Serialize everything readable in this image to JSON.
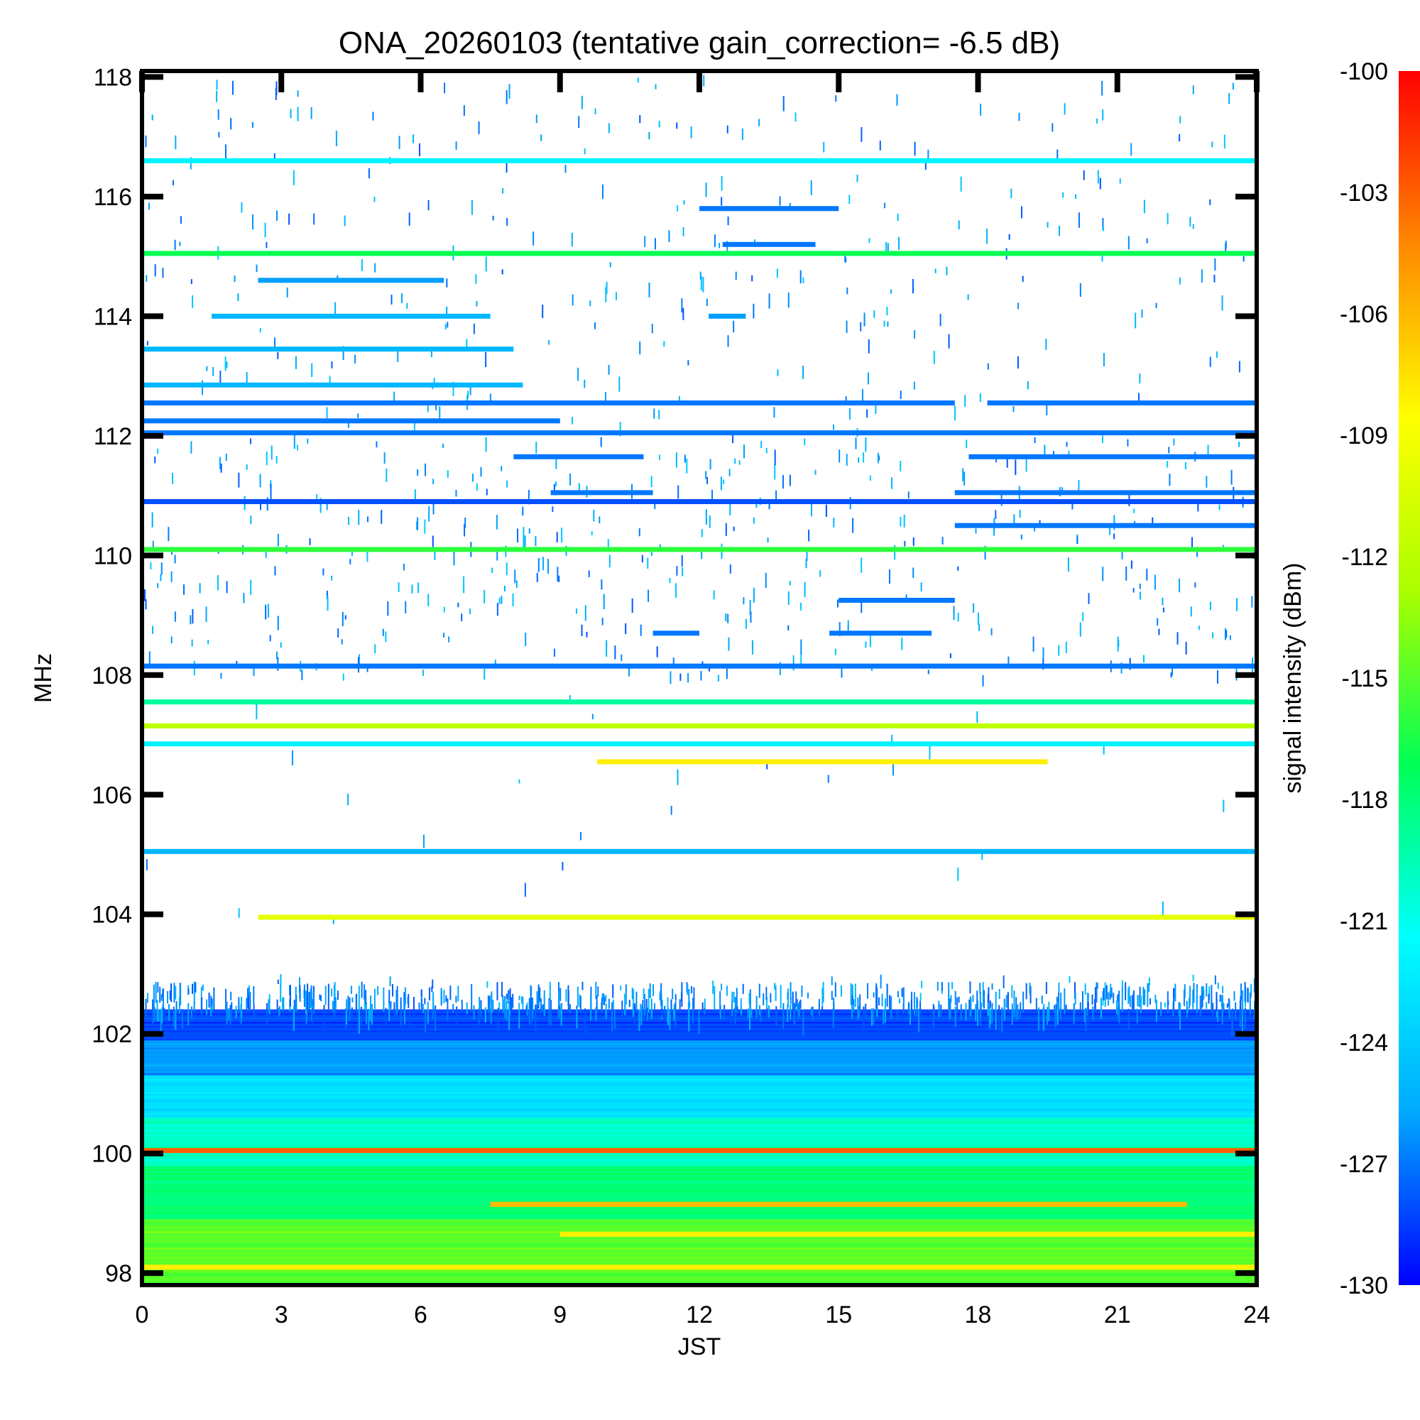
{
  "chart_data": {
    "type": "heatmap",
    "title": "ONA_20260103 (tentative gain_correction= -6.5 dB)",
    "xlabel": "JST",
    "ylabel": "MHz",
    "xlim": [
      0,
      24
    ],
    "ylim": [
      97.8,
      118.1
    ],
    "x_ticks": [
      0,
      3,
      6,
      9,
      12,
      15,
      18,
      21,
      24
    ],
    "y_ticks": [
      98,
      100,
      102,
      104,
      106,
      108,
      110,
      112,
      114,
      116,
      118
    ],
    "grid": false,
    "colorbar": {
      "label": "signal intensity (dBm)",
      "min": -130,
      "max": -100,
      "ticks": [
        -100,
        -103,
        -106,
        -109,
        -112,
        -115,
        -118,
        -121,
        -124,
        -127,
        -130
      ],
      "colormap": "jet",
      "colors": [
        "#0000ff",
        "#00aaff",
        "#00ffff",
        "#00ff55",
        "#aaff00",
        "#ffff00",
        "#ff8800",
        "#ff0000"
      ]
    },
    "bands": [
      {
        "freq": 116.6,
        "t_start": 0,
        "t_end": 24,
        "dbm": -122
      },
      {
        "freq": 115.2,
        "t_start": 12.5,
        "t_end": 14.5,
        "dbm": -127
      },
      {
        "freq": 115.8,
        "t_start": 12,
        "t_end": 15,
        "dbm": -127
      },
      {
        "freq": 115.05,
        "t_start": 0,
        "t_end": 24,
        "dbm": -117
      },
      {
        "freq": 114.6,
        "t_start": 2.5,
        "t_end": 6.5,
        "dbm": -126
      },
      {
        "freq": 114.0,
        "t_start": 1.5,
        "t_end": 7.5,
        "dbm": -125
      },
      {
        "freq": 114.0,
        "t_start": 12.2,
        "t_end": 13,
        "dbm": -126
      },
      {
        "freq": 113.45,
        "t_start": 0,
        "t_end": 8,
        "dbm": -125
      },
      {
        "freq": 112.85,
        "t_start": 0,
        "t_end": 8.2,
        "dbm": -125
      },
      {
        "freq": 112.55,
        "t_start": 0,
        "t_end": 17.5,
        "dbm": -127
      },
      {
        "freq": 112.55,
        "t_start": 18.2,
        "t_end": 24,
        "dbm": -127
      },
      {
        "freq": 112.25,
        "t_start": 0,
        "t_end": 9,
        "dbm": -127
      },
      {
        "freq": 112.05,
        "t_start": 0,
        "t_end": 24,
        "dbm": -127
      },
      {
        "freq": 111.65,
        "t_start": 8,
        "t_end": 10.8,
        "dbm": -127
      },
      {
        "freq": 111.65,
        "t_start": 17.8,
        "t_end": 24,
        "dbm": -127
      },
      {
        "freq": 111.05,
        "t_start": 8.8,
        "t_end": 11,
        "dbm": -127
      },
      {
        "freq": 111.05,
        "t_start": 17.5,
        "t_end": 24,
        "dbm": -127
      },
      {
        "freq": 110.9,
        "t_start": 0,
        "t_end": 24,
        "dbm": -128
      },
      {
        "freq": 110.5,
        "t_start": 17.5,
        "t_end": 24,
        "dbm": -127
      },
      {
        "freq": 110.1,
        "t_start": 0,
        "t_end": 24,
        "dbm": -116
      },
      {
        "freq": 109.25,
        "t_start": 15,
        "t_end": 17.5,
        "dbm": -127
      },
      {
        "freq": 108.7,
        "t_start": 11,
        "t_end": 12,
        "dbm": -127
      },
      {
        "freq": 108.7,
        "t_start": 14.8,
        "t_end": 17,
        "dbm": -127
      },
      {
        "freq": 108.15,
        "t_start": 0,
        "t_end": 24,
        "dbm": -127
      },
      {
        "freq": 107.55,
        "t_start": 0,
        "t_end": 24,
        "dbm": -119
      },
      {
        "freq": 107.15,
        "t_start": 0,
        "t_end": 24,
        "dbm": -112
      },
      {
        "freq": 106.85,
        "t_start": 0,
        "t_end": 24,
        "dbm": -122
      },
      {
        "freq": 106.55,
        "t_start": 9.8,
        "t_end": 19.5,
        "dbm": -108
      },
      {
        "freq": 105.05,
        "t_start": 0,
        "t_end": 24,
        "dbm": -125
      },
      {
        "freq": 103.95,
        "t_start": 2.5,
        "t_end": 24,
        "dbm": -110
      },
      {
        "freq": 100.05,
        "t_start": 0,
        "t_end": 24,
        "dbm": -103
      },
      {
        "freq": 99.15,
        "t_start": 7.5,
        "t_end": 22.5,
        "dbm": -106
      },
      {
        "freq": 98.65,
        "t_start": 9,
        "t_end": 24,
        "dbm": -108
      },
      {
        "freq": 98.1,
        "t_start": 0,
        "t_end": 24,
        "dbm": -108
      }
    ],
    "continuum": [
      {
        "f_start": 97.8,
        "f_end": 98.9,
        "dbm": -115
      },
      {
        "f_start": 98.9,
        "f_end": 99.8,
        "dbm": -118
      },
      {
        "f_start": 99.8,
        "f_end": 100.6,
        "dbm": -120
      },
      {
        "f_start": 100.6,
        "f_end": 101.3,
        "dbm": -123
      },
      {
        "f_start": 101.3,
        "f_end": 101.9,
        "dbm": -126
      },
      {
        "f_start": 101.9,
        "f_end": 102.4,
        "dbm": -128
      }
    ]
  }
}
